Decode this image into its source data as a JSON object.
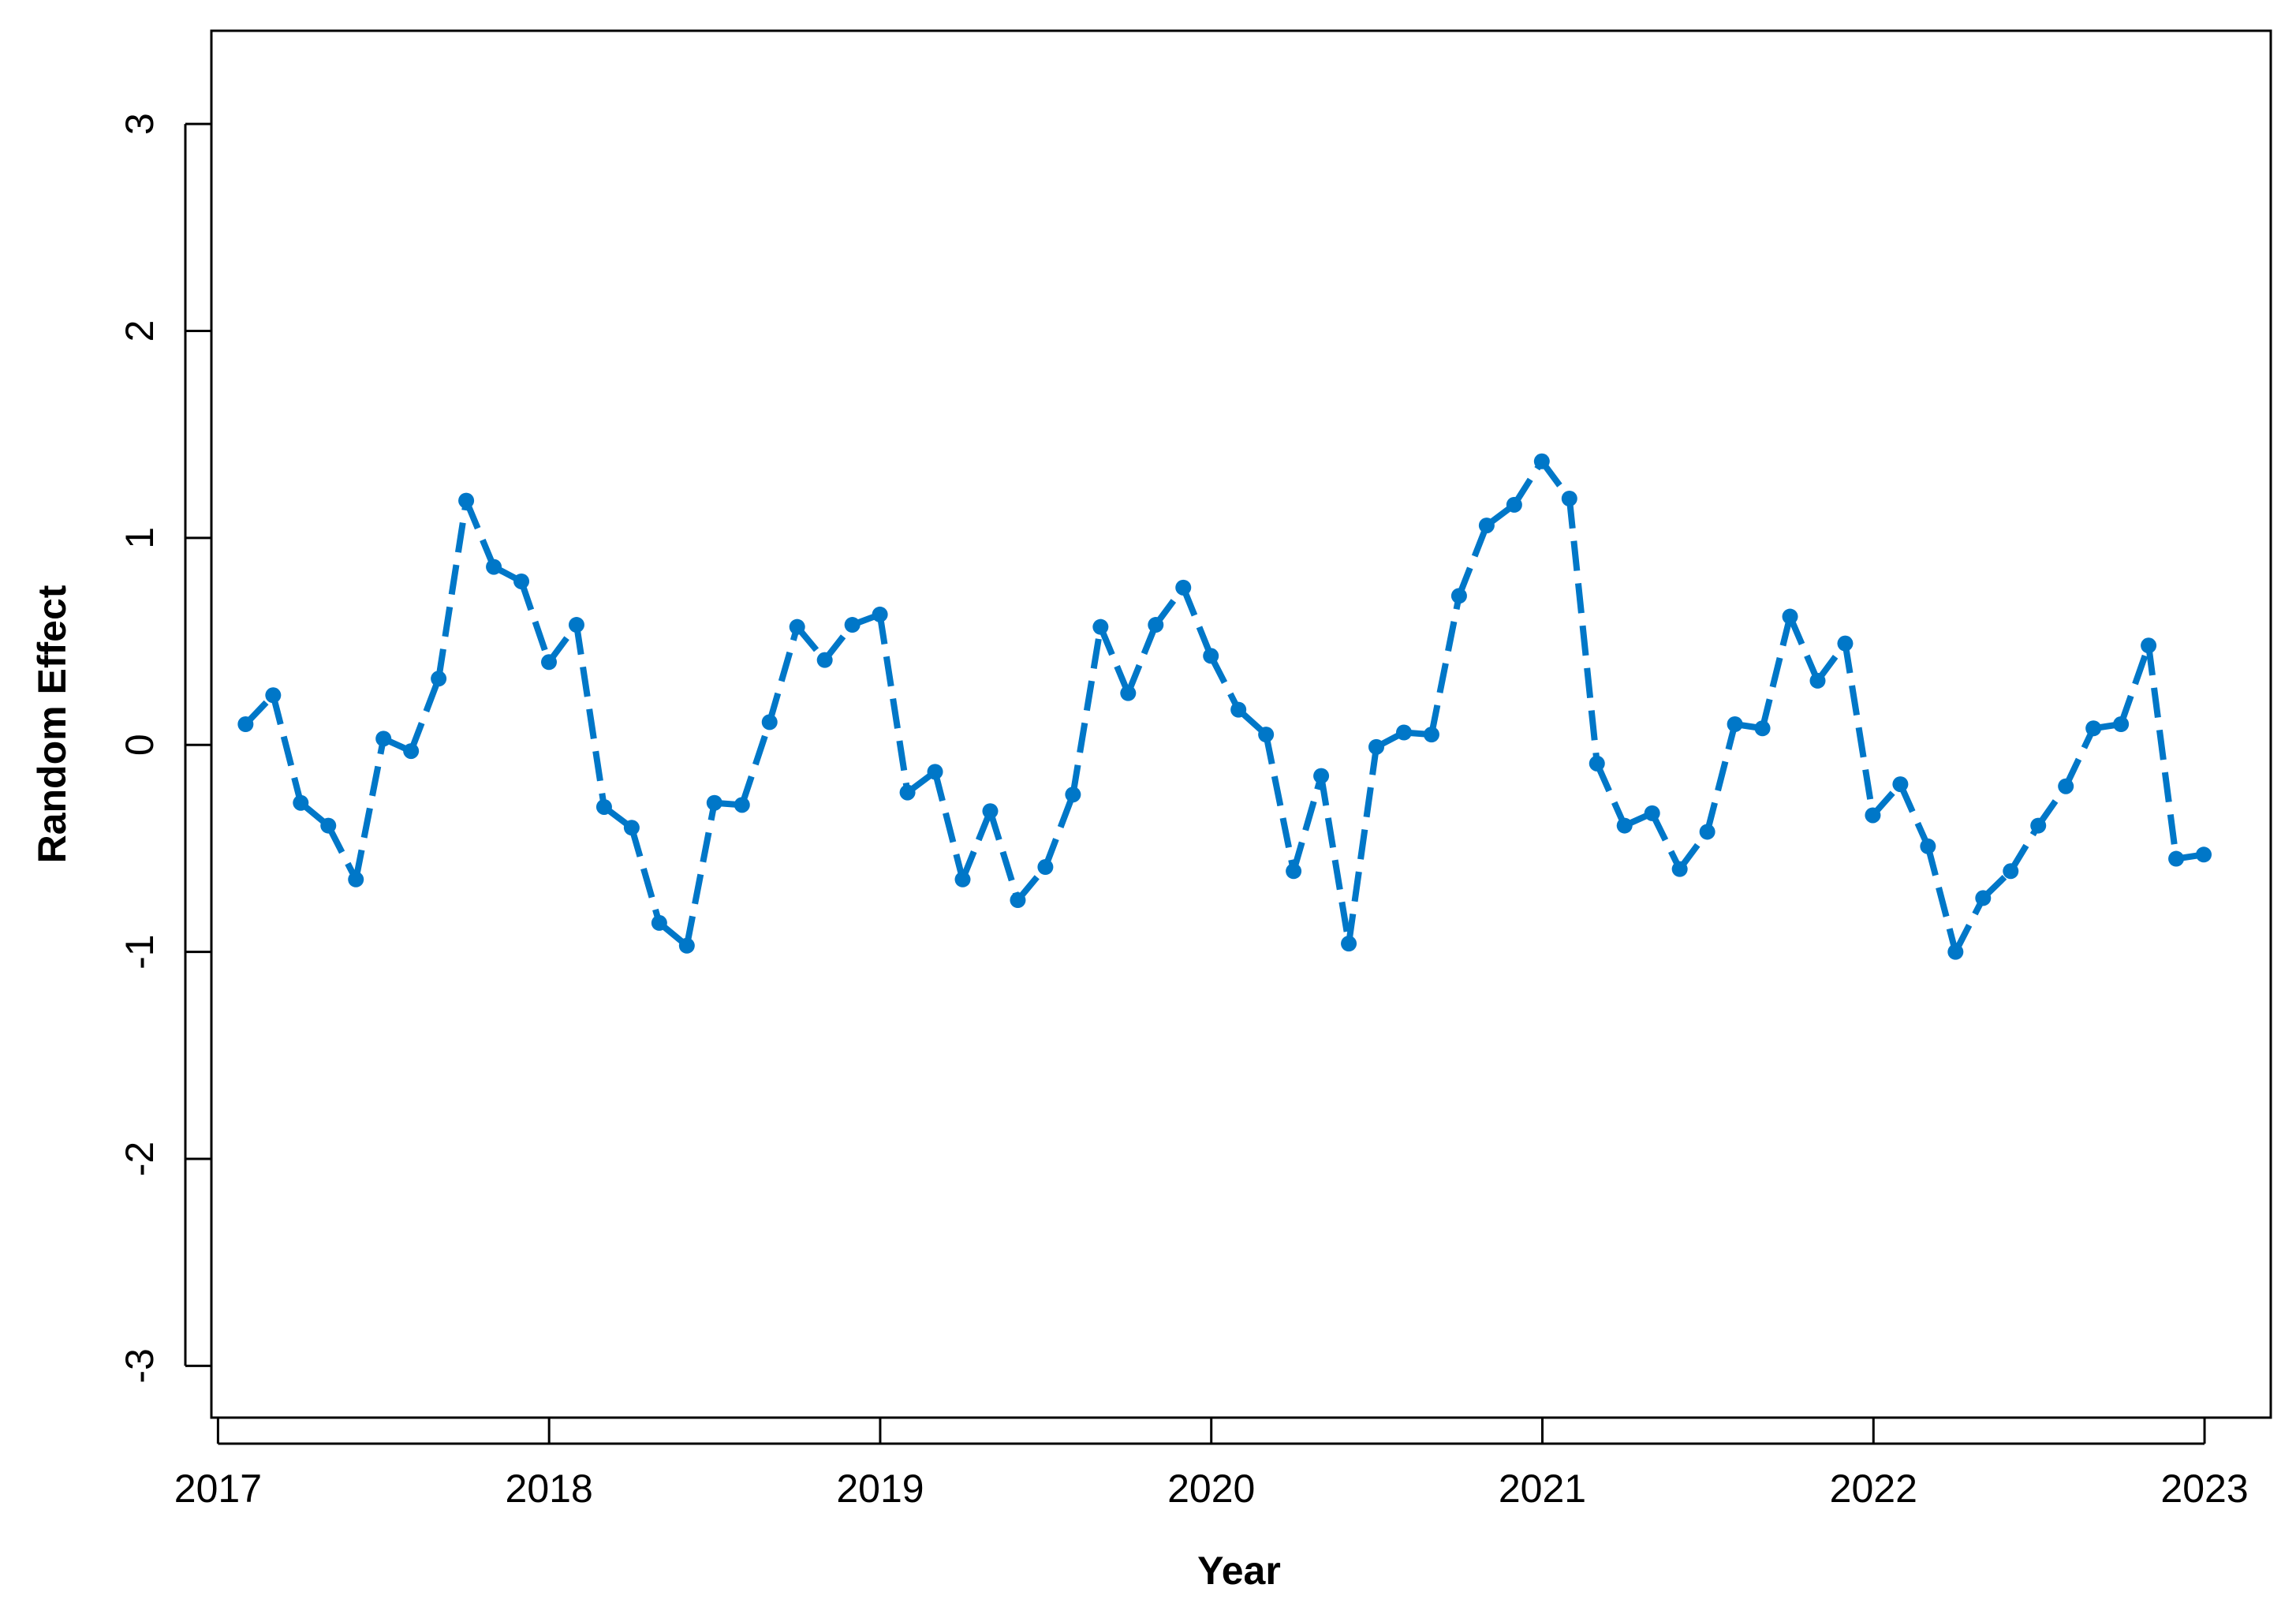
{
  "chart_data": {
    "type": "line",
    "title": "",
    "xlabel": "Year",
    "ylabel": "Random Effect",
    "xlim": [
      2016.98,
      2023.2
    ],
    "ylim": [
      -3.25,
      3.45
    ],
    "x_ticks": [
      2017,
      2018,
      2019,
      2020,
      2021,
      2022,
      2023
    ],
    "y_ticks": [
      -3,
      -2,
      -1,
      0,
      1,
      2,
      3
    ],
    "grid": false,
    "legend": "none",
    "colors": {
      "series": "#0077c8",
      "axis": "#000000",
      "background": "#ffffff"
    },
    "series": [
      {
        "x_start": 2017.0833,
        "x_step": 0.0833,
        "values": [
          0.1,
          0.24,
          -0.28,
          -0.39,
          -0.65,
          0.03,
          -0.03,
          0.32,
          1.18,
          0.86,
          0.79,
          0.4,
          0.58,
          -0.3,
          -0.4,
          -0.86,
          -0.97,
          -0.28,
          -0.29,
          0.11,
          0.57,
          0.41,
          0.58,
          0.63,
          -0.23,
          -0.13,
          -0.65,
          -0.32,
          -0.75,
          -0.59,
          -0.24,
          0.57,
          0.25,
          0.58,
          0.76,
          0.43,
          0.17,
          0.05,
          -0.61,
          -0.15,
          -0.96,
          -0.01,
          0.06,
          0.05,
          0.72,
          1.06,
          1.16,
          1.37,
          1.19,
          -0.09,
          -0.39,
          -0.33,
          -0.6,
          -0.42,
          0.1,
          0.08,
          0.62,
          0.31,
          0.49,
          -0.34,
          -0.19,
          -0.49,
          -1.0,
          -0.74,
          -0.61,
          -0.39,
          -0.2,
          0.08,
          0.1,
          0.48,
          -0.55,
          -0.53
        ]
      }
    ]
  }
}
